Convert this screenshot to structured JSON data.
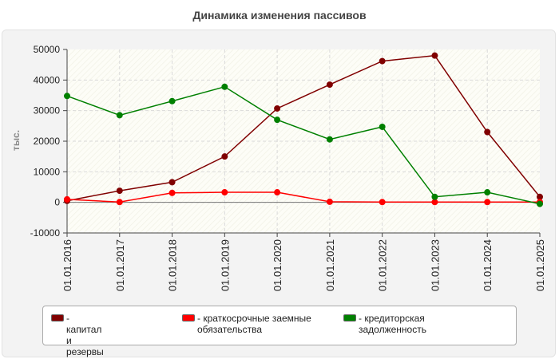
{
  "chart_data": {
    "type": "line",
    "title": "Динамика изменения пассивов",
    "ylabel": "тыс.",
    "xlabel": "",
    "categories": [
      "01.01.2016",
      "01.01.2017",
      "01.01.2018",
      "01.01.2019",
      "01.01.2020",
      "01.01.2021",
      "01.01.2022",
      "01.01.2023",
      "01.01.2024",
      "01.01.2025"
    ],
    "ylim": [
      -10000,
      50000
    ],
    "yticks": [
      "50000",
      "40000",
      "30000",
      "20000",
      "10000",
      "0",
      "-10000"
    ],
    "grid": true,
    "legend_position": "bottom",
    "series": [
      {
        "name": "капитал и резервы",
        "color": "#800000",
        "values": [
          500,
          3800,
          6600,
          15000,
          30700,
          38500,
          46200,
          48000,
          23000,
          1800
        ]
      },
      {
        "name": "краткосрочные заемные обязательства",
        "color": "#ff0000",
        "values": [
          1000,
          100,
          3100,
          3300,
          3300,
          200,
          100,
          100,
          100,
          100
        ]
      },
      {
        "name": "кредиторская задолженность",
        "color": "#008000",
        "values": [
          34800,
          28500,
          33100,
          37800,
          27000,
          20600,
          24700,
          1800,
          3300,
          -500
        ]
      }
    ]
  }
}
